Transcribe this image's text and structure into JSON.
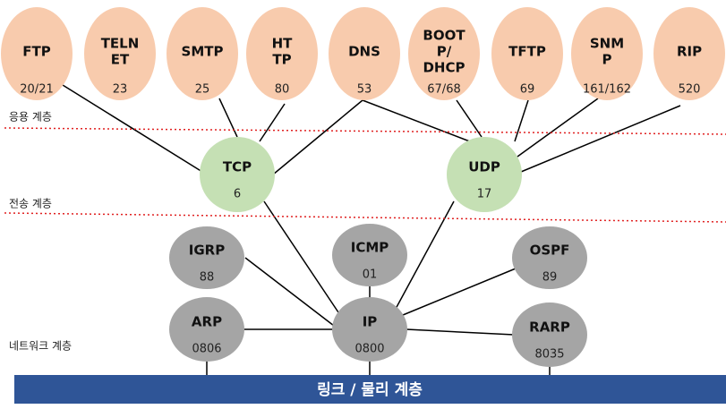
{
  "nodes": [
    {
      "label": [
        "FTP"
      ],
      "number": "20/21"
    },
    {
      "label": [
        "TELN",
        "ET"
      ],
      "number": "23"
    },
    {
      "label": [
        "SMTP"
      ],
      "number": "25"
    },
    {
      "label": [
        "HT",
        "TP"
      ],
      "number": "80"
    },
    {
      "label": [
        "DNS"
      ],
      "number": "53"
    },
    {
      "label": [
        "BOOT",
        "P/",
        "DHCP"
      ],
      "number": "67/68"
    },
    {
      "label": [
        "TFTP"
      ],
      "number": "69"
    },
    {
      "label": [
        "SNM",
        "P"
      ],
      "number": "161/162"
    },
    {
      "label": [
        "RIP"
      ],
      "number": "520"
    },
    {
      "label": [
        "TCP"
      ],
      "number": "6"
    },
    {
      "label": [
        "UDP"
      ],
      "number": "17"
    },
    {
      "label": [
        "IGRP"
      ],
      "number": "88"
    },
    {
      "label": [
        "ICMP"
      ],
      "number": "01"
    },
    {
      "label": [
        "OSPF"
      ],
      "number": "89"
    },
    {
      "label": [
        "ARP"
      ],
      "number": "0806"
    },
    {
      "label": [
        "IP"
      ],
      "number": "0800"
    },
    {
      "label": [
        "RARP"
      ],
      "number": "8035"
    }
  ],
  "layers": [
    "응용 계층",
    "전송 계층",
    "네트워크 계층"
  ],
  "bar": "링크 / 물리 계층"
}
